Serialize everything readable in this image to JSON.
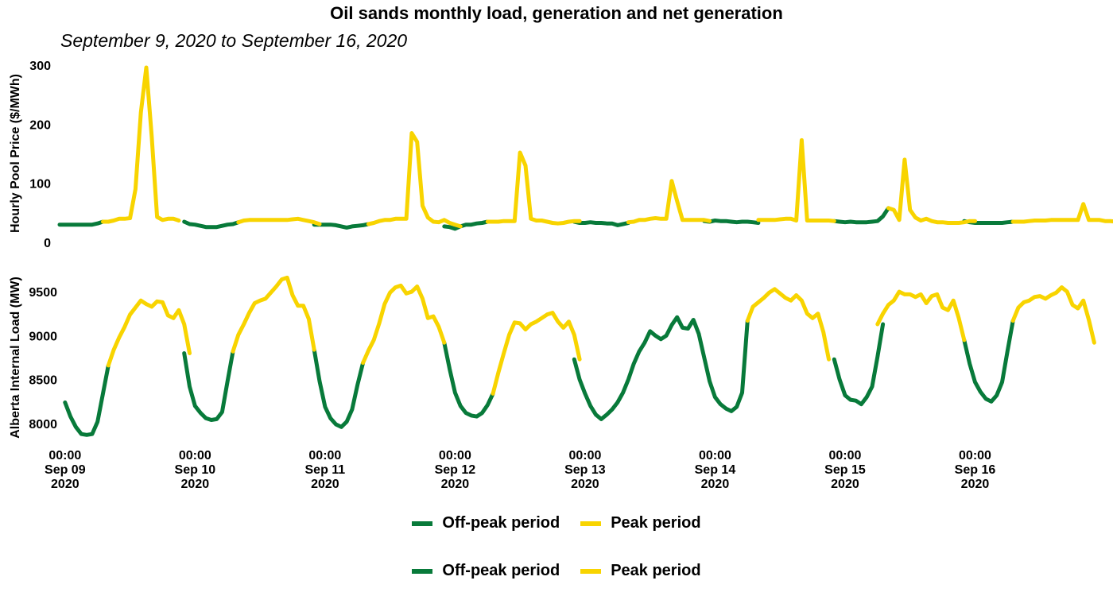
{
  "title": "Oil sands monthly load, generation and net generation",
  "subtitle": "September 9, 2020 to September 16, 2020",
  "colors": {
    "offpeak": "#087a3a",
    "peak": "#f8d400"
  },
  "legends": [
    {
      "items": [
        {
          "key": "offpeak",
          "label": "Off-peak period"
        },
        {
          "key": "peak",
          "label": "Peak period"
        }
      ]
    },
    {
      "items": [
        {
          "key": "offpeak",
          "label": "Off-peak period"
        },
        {
          "key": "peak",
          "label": "Peak period"
        }
      ]
    }
  ],
  "chart_data": [
    {
      "type": "line",
      "ylabel": "Hourly Pool Price ($/MWh)",
      "ylim": [
        0,
        300
      ],
      "yticks": [
        0,
        100,
        200,
        300
      ],
      "x_start": "2020-09-08T23:00",
      "x_step_hours": 1,
      "series": [
        {
          "name": "Off-peak period",
          "segments": [
            {
              "start": "2020-09-08T23:00",
              "values": [
                30,
                30,
                30,
                30,
                30,
                30,
                30,
                32,
                35
              ]
            },
            {
              "start": "2020-09-09T22:00",
              "values": [
                35,
                31,
                30,
                28,
                26,
                26,
                26,
                28,
                30,
                31,
                34
              ]
            },
            {
              "start": "2020-09-10T22:00",
              "values": [
                30,
                30,
                30,
                30,
                29,
                27,
                25,
                27,
                28,
                29,
                31
              ]
            },
            {
              "start": "2020-09-11T22:00",
              "values": [
                27,
                26,
                23,
                27,
                30,
                30,
                32,
                33,
                35
              ]
            },
            {
              "start": "2020-09-12T22:00",
              "values": [
                35,
                33,
                33,
                34,
                33,
                33,
                32,
                32,
                29,
                31,
                33
              ]
            },
            {
              "start": "2020-09-13T22:00",
              "values": [
                36,
                35,
                37,
                36,
                36,
                35,
                34,
                35,
                35,
                34,
                33
              ]
            },
            {
              "start": "2020-09-14T22:00",
              "values": [
                36,
                35,
                34,
                35,
                34,
                34,
                34,
                35,
                36,
                44,
                58
              ]
            },
            {
              "start": "2020-09-15T22:00",
              "values": [
                36,
                34,
                33,
                33,
                33,
                33,
                33,
                33,
                34,
                35
              ]
            }
          ]
        },
        {
          "name": "Peak period",
          "segments": [
            {
              "start": "2020-09-09T07:00",
              "values": [
                35,
                35,
                37,
                40,
                40,
                41,
                90,
                220,
                296,
                180,
                43,
                38,
                40,
                40,
                37
              ]
            },
            {
              "start": "2020-09-10T08:00",
              "values": [
                34,
                37,
                38,
                38,
                38,
                38,
                38,
                38,
                38,
                38,
                39,
                40,
                38,
                36,
                34,
                31
              ]
            },
            {
              "start": "2020-09-11T08:00",
              "values": [
                31,
                33,
                36,
                38,
                38,
                40,
                40,
                40,
                185,
                170,
                62,
                42,
                35,
                34,
                38,
                33,
                30,
                27
              ]
            },
            {
              "start": "2020-09-12T06:00",
              "values": [
                35,
                35,
                35,
                36,
                36,
                36,
                152,
                130,
                40,
                37,
                37,
                35,
                33,
                32,
                33,
                35,
                36,
                36
              ]
            },
            {
              "start": "2020-09-13T08:00",
              "values": [
                34,
                35,
                38,
                38,
                40,
                41,
                40,
                40,
                104,
                70,
                38,
                38,
                38,
                38,
                38,
                36
              ]
            },
            {
              "start": "2020-09-14T08:00",
              "values": [
                38,
                38,
                38,
                38,
                39,
                40,
                40,
                37,
                173,
                37,
                37,
                37,
                37,
                37,
                36
              ]
            },
            {
              "start": "2020-09-15T08:00",
              "values": [
                58,
                55,
                38,
                140,
                55,
                42,
                37,
                40,
                36,
                34,
                34,
                33,
                33,
                33,
                34,
                36,
                36
              ]
            },
            {
              "start": "2020-09-16T07:00",
              "values": [
                35,
                35,
                35,
                36,
                37,
                37,
                37,
                38,
                38,
                38,
                38,
                38,
                38,
                65,
                38,
                38,
                38,
                36,
                36,
                35
              ]
            }
          ]
        }
      ]
    },
    {
      "type": "line",
      "ylabel": "Alberta Internal Load (MW)",
      "ylim": [
        7800,
        9700
      ],
      "yticks": [
        8000,
        8500,
        9000,
        9500
      ],
      "xticks": [
        {
          "at": "2020-09-09T00:00",
          "time": "00:00",
          "date": "Sep 09",
          "year": "2020"
        },
        {
          "at": "2020-09-10T00:00",
          "time": "00:00",
          "date": "Sep 10",
          "year": "2020"
        },
        {
          "at": "2020-09-11T00:00",
          "time": "00:00",
          "date": "Sep 11",
          "year": "2020"
        },
        {
          "at": "2020-09-12T00:00",
          "time": "00:00",
          "date": "Sep 12",
          "year": "2020"
        },
        {
          "at": "2020-09-13T00:00",
          "time": "00:00",
          "date": "Sep 13",
          "year": "2020"
        },
        {
          "at": "2020-09-14T00:00",
          "time": "00:00",
          "date": "Sep 14",
          "year": "2020"
        },
        {
          "at": "2020-09-15T00:00",
          "time": "00:00",
          "date": "Sep 15",
          "year": "2020"
        },
        {
          "at": "2020-09-16T00:00",
          "time": "00:00",
          "date": "Sep 16",
          "year": "2020"
        }
      ],
      "series": [
        {
          "name": "Off-peak period",
          "segments": [
            {
              "start": "2020-09-09T00:00",
              "values": [
                8240,
                8080,
                7960,
                7880,
                7870,
                7880,
                8020,
                8340,
                8660
              ]
            },
            {
              "start": "2020-09-09T22:00",
              "values": [
                8800,
                8420,
                8200,
                8120,
                8060,
                8040,
                8050,
                8130,
                8480,
                8820
              ]
            },
            {
              "start": "2020-09-10T22:00",
              "values": [
                8840,
                8480,
                8190,
                8060,
                7990,
                7960,
                8020,
                8160,
                8440,
                8690
              ]
            },
            {
              "start": "2020-09-11T22:00",
              "values": [
                8920,
                8620,
                8350,
                8200,
                8120,
                8090,
                8080,
                8120,
                8210,
                8340
              ]
            },
            {
              "start": "2020-09-12T22:00",
              "values": [
                8730,
                8500,
                8340,
                8200,
                8100,
                8050,
                8100,
                8160,
                8240,
                8350,
                8500,
                8680,
                8820,
                8920,
                9050,
                9000,
                8960,
                9000,
                9120,
                9210,
                9090,
                9080,
                9180,
                9020,
                8750,
                8480,
                8300,
                8220,
                8170,
                8140,
                8190,
                8350,
                9170
              ]
            },
            {
              "start": "2020-09-14T22:00",
              "values": [
                8730,
                8500,
                8320,
                8270,
                8260,
                8220,
                8300,
                8420,
                8760,
                9130
              ]
            },
            {
              "start": "2020-09-15T22:00",
              "values": [
                8950,
                8680,
                8470,
                8360,
                8280,
                8250,
                8320,
                8470,
                8830,
                9170
              ]
            }
          ]
        },
        {
          "name": "Peak period",
          "segments": [
            {
              "start": "2020-09-09T08:00",
              "values": [
                8660,
                8840,
                8980,
                9100,
                9240,
                9320,
                9400,
                9360,
                9330,
                9390,
                9380,
                9230,
                9200,
                9290,
                9130,
                8800
              ]
            },
            {
              "start": "2020-09-10T07:00",
              "values": [
                8820,
                9010,
                9130,
                9260,
                9370,
                9400,
                9420,
                9490,
                9560,
                9640,
                9660,
                9460,
                9340,
                9340,
                9190,
                8840
              ]
            },
            {
              "start": "2020-09-11T07:00",
              "values": [
                8690,
                8830,
                8950,
                9140,
                9360,
                9490,
                9550,
                9570,
                9480,
                9500,
                9560,
                9420,
                9200,
                9220,
                9100,
                8920
              ]
            },
            {
              "start": "2020-09-12T07:00",
              "values": [
                8340,
                8580,
                8800,
                9010,
                9150,
                9140,
                9070,
                9130,
                9160,
                9200,
                9240,
                9260,
                9160,
                9090,
                9160,
                9010,
                8730
              ]
            },
            {
              "start": "2020-09-14T06:00",
              "values": [
                9170,
                9330,
                9380,
                9430,
                9490,
                9530,
                9480,
                9430,
                9400,
                9460,
                9400,
                9250,
                9200,
                9250,
                9040,
                8730
              ]
            },
            {
              "start": "2020-09-15T06:00",
              "values": [
                9130,
                9250,
                9350,
                9400,
                9500,
                9470,
                9470,
                9440,
                9470,
                9370,
                9450,
                9470,
                9320,
                9290,
                9400,
                9200,
                8950
              ]
            },
            {
              "start": "2020-09-16T07:00",
              "values": [
                9170,
                9320,
                9380,
                9400,
                9440,
                9450,
                9420,
                9460,
                9490,
                9550,
                9500,
                9350,
                9310,
                9400,
                9180,
                8920
              ]
            }
          ]
        }
      ]
    }
  ]
}
